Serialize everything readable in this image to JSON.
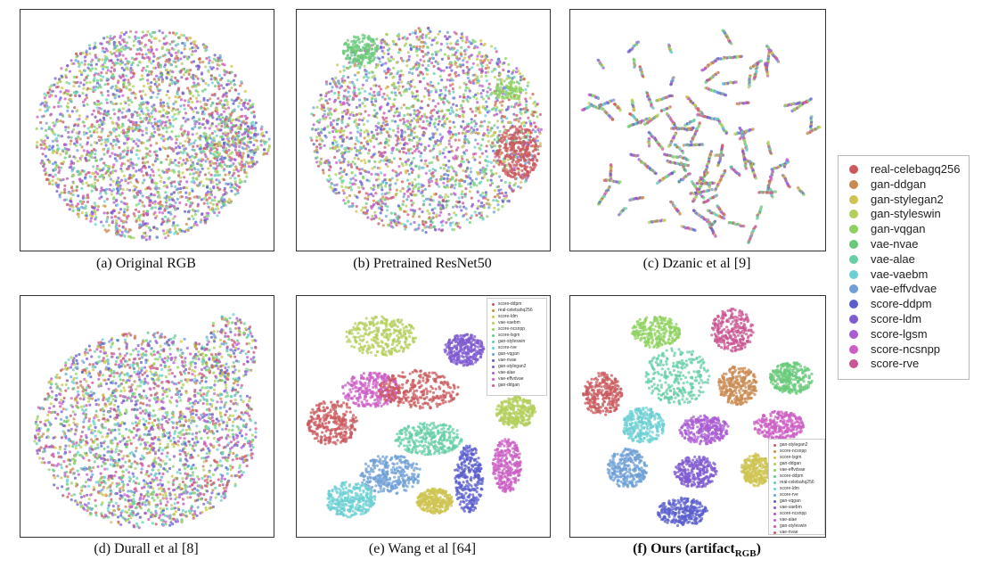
{
  "chart_data": [
    {
      "type": "scatter",
      "panel": "a",
      "caption": "(a) Original RGB",
      "pattern": "mixed"
    },
    {
      "type": "scatter",
      "panel": "b",
      "caption": "(b) Pretrained ResNet50",
      "pattern": "mixed-partial"
    },
    {
      "type": "scatter",
      "panel": "c",
      "caption": "(c) Dzanic et al [9]",
      "pattern": "sparse-mixed"
    },
    {
      "type": "scatter",
      "panel": "d",
      "caption": "(d) Durall et al [8]",
      "pattern": "mixed"
    },
    {
      "type": "scatter",
      "panel": "e",
      "caption": "(e) Wang et al [64]",
      "pattern": "clustered",
      "legend": [
        "score-ddpm",
        "real-celebahq256",
        "score-ldm",
        "vae-vaebm",
        "score-ncsnpp",
        "score-lsgm",
        "gan-styleswin",
        "score-rve",
        "gan-vqgan",
        "vae-nvae",
        "gan-stylegan2",
        "vae-alae",
        "vae-effvdvae",
        "gan-ddgan"
      ]
    },
    {
      "type": "scatter",
      "panel": "f",
      "caption_main": "(f) Ours (artifact",
      "caption_sub": "RGB",
      "caption_close": ")",
      "pattern": "clustered",
      "legend": [
        "gan-stylegan2",
        "score-ncsnpp",
        "score-lsgm",
        "gan-ddgan",
        "vae-effvdvae",
        "score-ddpm",
        "real-celebahq256",
        "score-ldm",
        "score-rve",
        "gan-vqgan",
        "vae-vaebm",
        "score-ncsnpp",
        "vae-alae",
        "gan-styleswin",
        "vae-nvae"
      ]
    }
  ],
  "legend": {
    "items": [
      {
        "label": "real-celebagq256",
        "color": "#c9595d"
      },
      {
        "label": "gan-ddgan",
        "color": "#c98a52"
      },
      {
        "label": "gan-stylegan2",
        "color": "#cdc452"
      },
      {
        "label": "gan-styleswin",
        "color": "#b3cf5c"
      },
      {
        "label": "gan-vqgan",
        "color": "#8fd160"
      },
      {
        "label": "vae-nvae",
        "color": "#68c97a"
      },
      {
        "label": "vae-alae",
        "color": "#64cfa5"
      },
      {
        "label": "vae-vaebm",
        "color": "#6ccfd3"
      },
      {
        "label": "vae-effvdvae",
        "color": "#6e9fd6"
      },
      {
        "label": "score-ddpm",
        "color": "#5b5fcc"
      },
      {
        "label": "score-ldm",
        "color": "#7f5bd0"
      },
      {
        "label": "score-lgsm",
        "color": "#a95cd1"
      },
      {
        "label": "score-ncsnpp",
        "color": "#cc5fc4"
      },
      {
        "label": "score-rve",
        "color": "#c95592"
      }
    ]
  }
}
